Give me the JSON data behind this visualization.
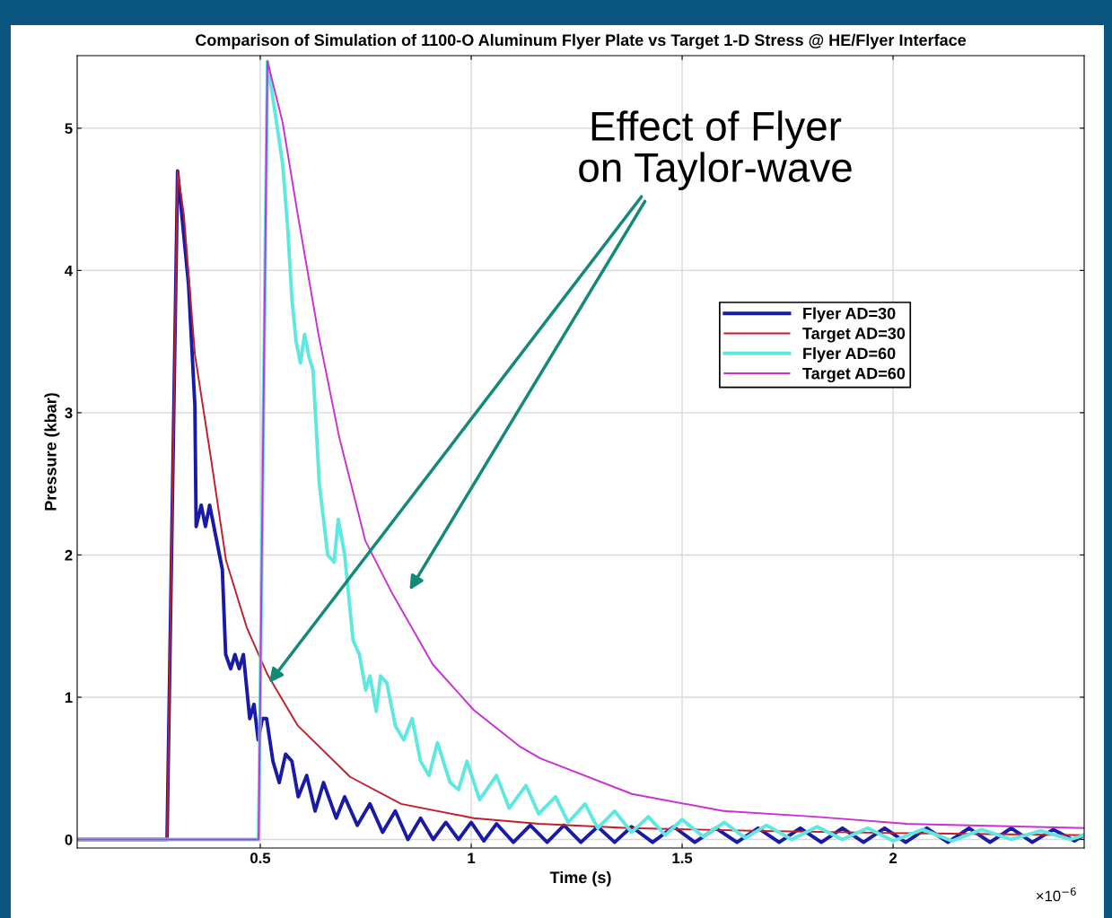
{
  "chart_data": {
    "type": "line",
    "title": "Comparison of Simulation of 1100-O Aluminum Flyer Plate vs Target 1-D Stress @ HE/Flyer Interface",
    "xlabel": "Time (s)",
    "ylabel": "Pressure (kbar)",
    "xlim": [
      0.066,
      2.453
    ],
    "ylim": [
      -0.06,
      5.51
    ],
    "xticks": [
      0.5,
      1,
      1.5,
      2
    ],
    "yticks": [
      0,
      1,
      2,
      3,
      4,
      5
    ],
    "grid": true,
    "legend": "right",
    "line_style": "solid",
    "marker": "none",
    "annotations": [
      {
        "text": "Effect of Flyer\non Taylor-wave",
        "x": 0.521,
        "y": 1.1
      },
      "×10$^{−6}$"
    ],
    "series": [
      {
        "name": "Flyer AD=30",
        "color": "#1a1aa8",
        "x": [
          0.066,
          0.279,
          0.304,
          0.33,
          0.345,
          0.348,
          0.36,
          0.37,
          0.38,
          0.39,
          0.41,
          0.418,
          0.43,
          0.44,
          0.45,
          0.46,
          0.475,
          0.485,
          0.495,
          0.505,
          0.515,
          0.53,
          0.545,
          0.56,
          0.575,
          0.59,
          0.61,
          0.63,
          0.65,
          0.68,
          0.7,
          0.73,
          0.76,
          0.79,
          0.82,
          0.85,
          0.88,
          0.91,
          0.94,
          0.97,
          1.0,
          1.03,
          1.06,
          1.1,
          1.14,
          1.18,
          1.22,
          1.26,
          1.3,
          1.34,
          1.38,
          1.43,
          1.48,
          1.53,
          1.58,
          1.63,
          1.68,
          1.73,
          1.78,
          1.83,
          1.88,
          1.93,
          1.98,
          2.03,
          2.08,
          2.13,
          2.18,
          2.23,
          2.28,
          2.33,
          2.38,
          2.43,
          2.453
        ],
        "values": [
          0,
          0,
          4.7,
          3.9,
          3.05,
          2.2,
          2.35,
          2.2,
          2.35,
          2.2,
          1.9,
          1.3,
          1.2,
          1.3,
          1.2,
          1.3,
          0.85,
          0.95,
          0.7,
          0.85,
          0.85,
          0.55,
          0.4,
          0.6,
          0.55,
          0.3,
          0.45,
          0.2,
          0.4,
          0.15,
          0.3,
          0.1,
          0.25,
          0.05,
          0.2,
          0.0,
          0.15,
          0.0,
          0.12,
          0.0,
          0.12,
          -0.01,
          0.11,
          -0.02,
          0.1,
          -0.02,
          0.1,
          -0.02,
          0.09,
          -0.02,
          0.09,
          -0.02,
          0.09,
          -0.02,
          0.08,
          -0.02,
          0.08,
          -0.02,
          0.08,
          -0.02,
          0.08,
          -0.02,
          0.08,
          -0.02,
          0.08,
          -0.02,
          0.08,
          -0.02,
          0.08,
          -0.02,
          0.07,
          -0.01,
          0.03
        ]
      },
      {
        "name": "Target AD=30",
        "color": "#c0202a",
        "x": [
          0.066,
          0.279,
          0.304,
          0.319,
          0.345,
          0.383,
          0.419,
          0.468,
          0.517,
          0.589,
          0.713,
          0.834,
          1.006,
          1.16,
          1.372,
          1.69,
          2.01,
          2.453
        ],
        "values": [
          0,
          0,
          4.7,
          4.39,
          3.41,
          2.68,
          1.96,
          1.49,
          1.16,
          0.8,
          0.44,
          0.25,
          0.15,
          0.11,
          0.08,
          0.06,
          0.045,
          0.03
        ]
      },
      {
        "name": "Flyer AD=60",
        "color": "#5ee8e0",
        "x": [
          0.066,
          0.496,
          0.517,
          0.553,
          0.565,
          0.575,
          0.585,
          0.595,
          0.605,
          0.615,
          0.625,
          0.64,
          0.66,
          0.675,
          0.685,
          0.7,
          0.72,
          0.735,
          0.75,
          0.76,
          0.775,
          0.785,
          0.8,
          0.82,
          0.84,
          0.86,
          0.88,
          0.9,
          0.92,
          0.95,
          0.97,
          0.99,
          1.02,
          1.06,
          1.09,
          1.13,
          1.16,
          1.2,
          1.23,
          1.27,
          1.3,
          1.34,
          1.38,
          1.42,
          1.46,
          1.5,
          1.55,
          1.6,
          1.65,
          1.7,
          1.76,
          1.82,
          1.88,
          1.94,
          2.0,
          2.07,
          2.14,
          2.21,
          2.28,
          2.35,
          2.42,
          2.453
        ],
        "values": [
          0,
          0,
          5.47,
          4.75,
          4.3,
          3.8,
          3.5,
          3.35,
          3.55,
          3.4,
          3.3,
          2.5,
          2.0,
          1.95,
          2.25,
          2.0,
          1.4,
          1.3,
          1.05,
          1.15,
          0.9,
          1.15,
          1.1,
          0.8,
          0.7,
          0.85,
          0.55,
          0.45,
          0.68,
          0.4,
          0.35,
          0.55,
          0.28,
          0.45,
          0.22,
          0.38,
          0.18,
          0.3,
          0.12,
          0.25,
          0.08,
          0.2,
          0.05,
          0.16,
          0.03,
          0.14,
          0.02,
          0.12,
          0.01,
          0.1,
          0.0,
          0.09,
          0.0,
          0.08,
          -0.01,
          0.07,
          -0.01,
          0.07,
          0.0,
          0.06,
          0.0,
          0.03
        ]
      },
      {
        "name": "Target AD=60",
        "color": "#c832d2",
        "x": [
          0.066,
          0.496,
          0.517,
          0.553,
          0.589,
          0.638,
          0.687,
          0.749,
          0.811,
          0.909,
          1.006,
          1.117,
          1.164,
          1.381,
          1.598,
          1.815,
          2.032,
          2.451
        ],
        "values": [
          0,
          0,
          5.47,
          5.04,
          4.39,
          3.55,
          2.83,
          2.1,
          1.74,
          1.23,
          0.91,
          0.65,
          0.57,
          0.32,
          0.2,
          0.16,
          0.11,
          0.08
        ]
      }
    ]
  }
}
